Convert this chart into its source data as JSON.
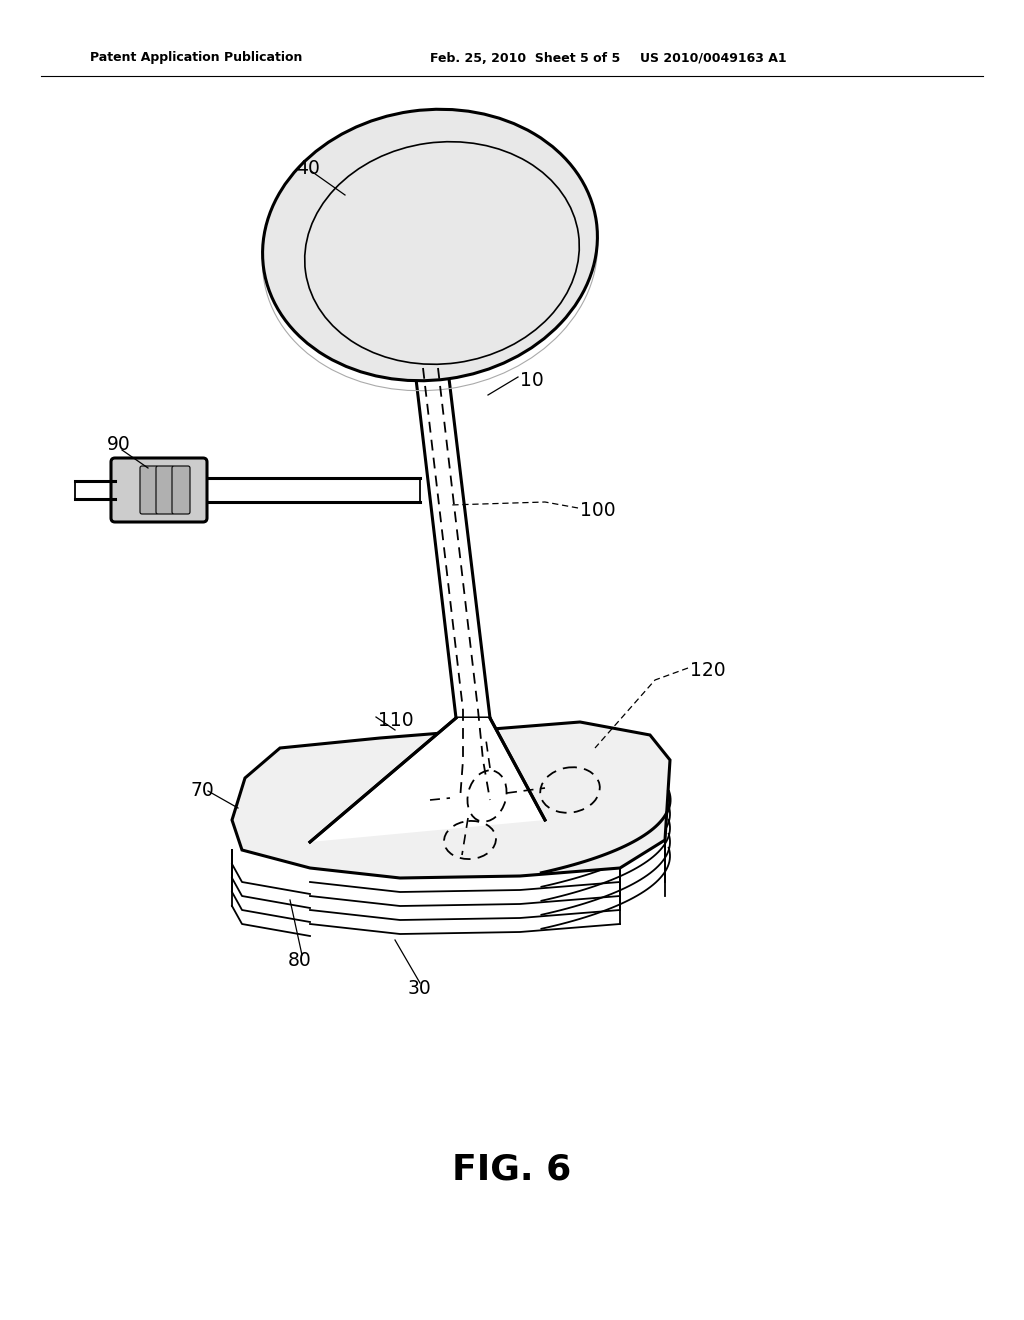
{
  "bg_color": "#ffffff",
  "line_color": "#000000",
  "header_left": "Patent Application Publication",
  "header_mid": "Feb. 25, 2010  Sheet 5 of 5",
  "header_right": "US 2010/0049163 A1",
  "fig_label": "FIG. 6"
}
